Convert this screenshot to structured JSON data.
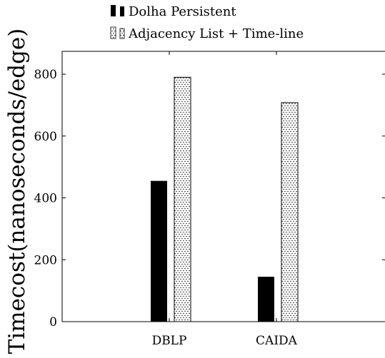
{
  "chart_data": {
    "type": "bar",
    "categories": [
      "DBLP",
      "CAIDA"
    ],
    "series": [
      {
        "name": "Dolha Persistent",
        "values": [
          455,
          145
        ],
        "pattern": "solid",
        "color": "#000000"
      },
      {
        "name": "Adjacency List + Time-line",
        "values": [
          790,
          708
        ],
        "pattern": "dots",
        "color": "#000000"
      }
    ],
    "title": "",
    "xlabel": "",
    "ylabel": "Timecost(nanoseconds/edge)",
    "ylim": [
      0,
      870
    ],
    "yticks": [
      0,
      200,
      400,
      600,
      800
    ],
    "grid": false,
    "legend": "above"
  }
}
